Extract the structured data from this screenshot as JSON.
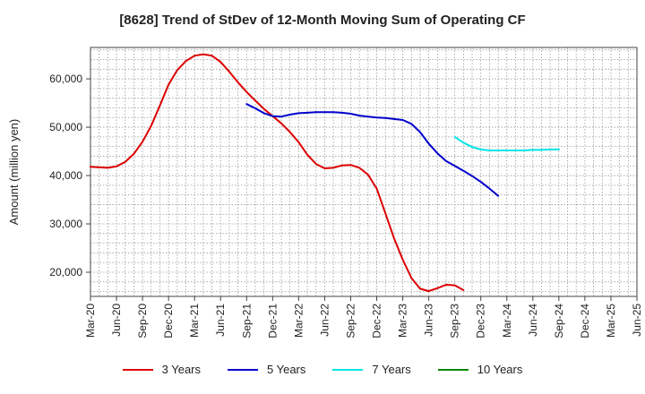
{
  "chart_data": {
    "type": "line",
    "title": "[8628]  Trend of StDev of 12-Month Moving Sum of Operating CF",
    "xlabel": "",
    "ylabel": "Amount (million yen)",
    "ylim": [
      15000,
      66500
    ],
    "yticks": [
      20000,
      30000,
      40000,
      50000,
      60000
    ],
    "ytick_labels": [
      "20,000",
      "30,000",
      "40,000",
      "50,000",
      "60,000"
    ],
    "xticks": [
      "Mar-20",
      "Jun-20",
      "Sep-20",
      "Dec-20",
      "Mar-21",
      "Jun-21",
      "Sep-21",
      "Dec-21",
      "Mar-22",
      "Jun-22",
      "Sep-22",
      "Dec-22",
      "Mar-23",
      "Jun-23",
      "Sep-23",
      "Dec-23",
      "Mar-24",
      "Jun-24",
      "Sep-24",
      "Dec-24",
      "Mar-25",
      "Jun-25"
    ],
    "grid": true,
    "legend_position": "bottom",
    "series": [
      {
        "name": "3 Years",
        "color": "#dd0000",
        "start": 0,
        "values": [
          41800,
          41700,
          41600,
          41900,
          42800,
          44500,
          47000,
          50300,
          54500,
          58800,
          61800,
          63700,
          64800,
          65100,
          64800,
          63500,
          61500,
          59300,
          57300,
          55500,
          53800,
          52300,
          50800,
          49000,
          46900,
          44300,
          42400,
          41500,
          41600,
          42100,
          42200,
          41600,
          40200,
          37300,
          32200,
          27000,
          22600,
          18800,
          16600,
          16100,
          16700,
          17400,
          17300,
          16300
        ]
      },
      {
        "name": "5 Years",
        "color": "#0000cc",
        "start": 18,
        "values": [
          54800,
          53900,
          52900,
          52300,
          52200,
          52600,
          52900,
          53000,
          53100,
          53100,
          53100,
          53000,
          52800,
          52400,
          52200,
          52000,
          51900,
          51700,
          51500,
          50700,
          49000,
          46600,
          44600,
          43000,
          42000,
          41000,
          39900,
          38700,
          37300,
          35800
        ]
      },
      {
        "name": "7 Years",
        "color": "#00e5e5",
        "start": 42,
        "values": [
          48000,
          46800,
          45900,
          45400,
          45200,
          45200,
          45200,
          45200,
          45200,
          45300,
          45300,
          45400,
          45400
        ]
      },
      {
        "name": "10 Years",
        "color": "#008800",
        "start": 0,
        "values": []
      }
    ]
  }
}
